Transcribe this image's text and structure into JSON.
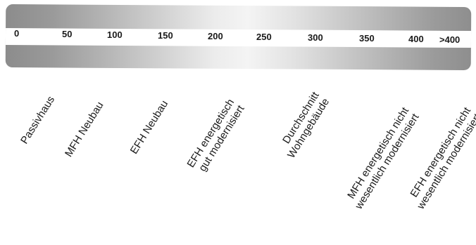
{
  "scale": {
    "ticks": [
      "0",
      "50",
      "100",
      "150",
      "200",
      "250",
      "300",
      "350",
      "400",
      ">400"
    ]
  },
  "categories": [
    {
      "lines": [
        "Passivhaus"
      ]
    },
    {
      "lines": [
        "MFH Neubau"
      ]
    },
    {
      "lines": [
        "EFH Neubau"
      ]
    },
    {
      "lines": [
        "EFH energetisch",
        "gut modernisiert"
      ]
    },
    {
      "lines": [
        "Durchschnitt",
        "Wohngebäude"
      ]
    },
    {
      "lines": [
        "MFH energetisch nicht",
        "wesentlich modernisiert"
      ]
    },
    {
      "lines": [
        "EFH energetisch nicht",
        "wesentlich modernisiert"
      ]
    }
  ]
}
